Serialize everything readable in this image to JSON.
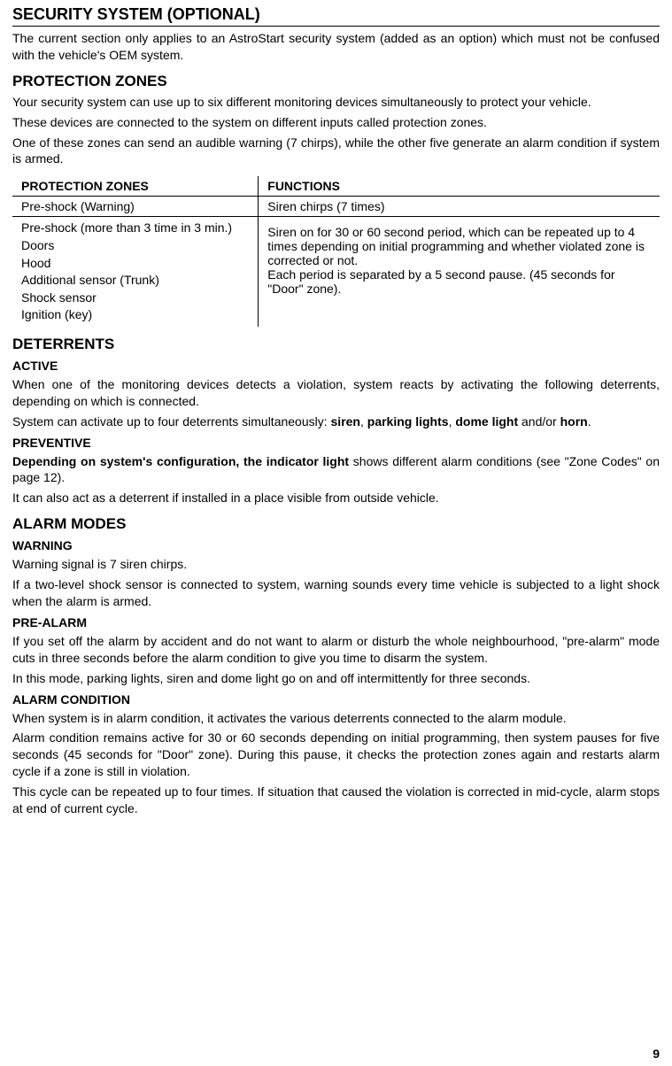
{
  "page_number": "9",
  "h1": "SECURITY SYSTEM (OPTIONAL)",
  "intro": "The current section only applies to an AstroStart security system (added as an option) which must not be confused with the vehicle's OEM system.",
  "protection_zones": {
    "heading": "PROTECTION ZONES",
    "p1": "Your security system can use up to six different monitoring devices simultaneously to protect your vehicle.",
    "p2": "These devices are connected to the system on different inputs called protection zones.",
    "p3": "One of these zones can send an audible warning (7 chirps), while the other five generate an alarm condition if system is armed.",
    "table": {
      "col1_header": "PROTECTION ZONES",
      "col2_header": "FUNCTIONS",
      "row1_col1": "Pre-shock (Warning)",
      "row1_col2": "Siren chirps (7 times)",
      "row2_zones": [
        "Pre-shock (more than 3 time in 3 min.)",
        "Doors",
        "Hood",
        "Additional sensor (Trunk)",
        "Shock sensor",
        "Ignition (key)"
      ],
      "row2_func_line1": "Siren on for 30 or 60 second period, which can be repeated up to 4 times depending on initial programming and whether violated zone is corrected or not.",
      "row2_func_line2": "Each period is separated by a 5 second pause. (45 seconds for \"Door\" zone)."
    }
  },
  "deterrents": {
    "heading": "DETERRENTS",
    "active_heading": "ACTIVE",
    "active_p1": "When one of the monitoring devices detects a violation, system reacts by activating the following deterrents, depending on which is connected.",
    "active_p2_pre": "System can activate up to four deterrents simultaneously: ",
    "active_p2_b1": "siren",
    "active_p2_sep1": ", ",
    "active_p2_b2": "parking lights",
    "active_p2_sep2": ", ",
    "active_p2_b3": "dome light",
    "active_p2_sep3": " and/or ",
    "active_p2_b4": "horn",
    "active_p2_end": ".",
    "preventive_heading": "PREVENTIVE",
    "preventive_p1_bold": "Depending on system's configuration, the indicator light",
    "preventive_p1_rest": " shows different alarm conditions (see \"Zone Codes\" on page 12).",
    "preventive_p2": "It can also act as a deterrent if installed in a place visible from outside vehicle."
  },
  "alarm_modes": {
    "heading": "ALARM MODES",
    "warning_heading": "WARNING",
    "warning_p1": "Warning signal is 7 siren chirps.",
    "warning_p2": "If a two-level shock sensor is connected to system, warning sounds every time vehicle is subjected to a light shock when the alarm is armed.",
    "prealarm_heading": "PRE-ALARM",
    "prealarm_p1": "If you set off the alarm by accident and do not want to alarm or disturb the whole neighbourhood, \"pre-alarm\" mode cuts in three seconds before the alarm condition to give you time to disarm the system.",
    "prealarm_p2": "In this mode, parking lights, siren and dome light go on and off intermittently for three seconds.",
    "alarmcond_heading": "ALARM CONDITION",
    "alarmcond_p1": "When system is in alarm condition, it activates the various deterrents connected to the alarm module.",
    "alarmcond_p2": "Alarm condition remains active for 30 or 60 seconds depending on initial programming, then system pauses for five seconds (45 seconds for \"Door\" zone). During this pause, it checks the protection zones again and restarts alarm cycle if a zone is still in violation.",
    "alarmcond_p3": "This cycle can be repeated up to four times. If situation that caused the violation is corrected in mid-cycle, alarm stops at end of current cycle."
  }
}
